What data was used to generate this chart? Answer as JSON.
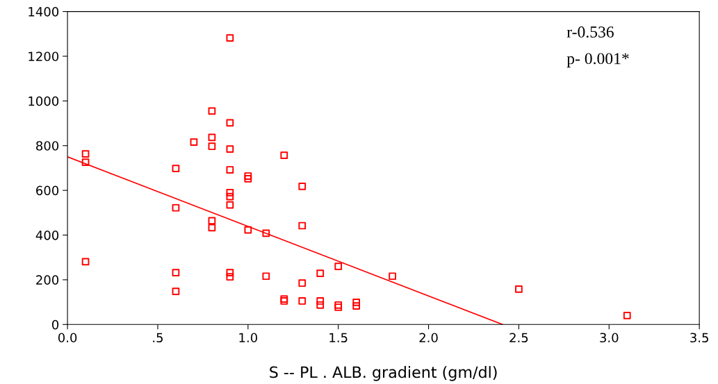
{
  "chart_data": {
    "type": "scatter",
    "xlabel": "S -- PL . ALB. gradient (gm/dl)",
    "xlim": [
      0,
      3.5
    ],
    "ylim": [
      0,
      1400
    ],
    "xticks": [
      {
        "value": 0,
        "label": "0.0"
      },
      {
        "value": 0.5,
        "label": ".5"
      },
      {
        "value": 1.0,
        "label": "1.0"
      },
      {
        "value": 1.5,
        "label": "1.5"
      },
      {
        "value": 2.0,
        "label": "2.0"
      },
      {
        "value": 2.5,
        "label": "2.5"
      },
      {
        "value": 3.0,
        "label": "3.0"
      },
      {
        "value": 3.5,
        "label": "3.5"
      }
    ],
    "yticks": [
      0,
      200,
      400,
      600,
      800,
      1000,
      1200,
      1400
    ],
    "grid": false,
    "legend": false,
    "marker": "square",
    "annotations": [
      "r-0.536",
      "p- 0.001*"
    ],
    "series": [
      {
        "color": "#ff0000",
        "x": [
          0.1,
          0.1,
          0.1,
          0.6,
          0.6,
          0.6,
          0.6,
          0.7,
          0.8,
          0.8,
          0.8,
          0.8,
          0.8,
          0.9,
          0.9,
          0.9,
          0.9,
          0.9,
          0.9,
          0.9,
          0.9,
          0.9,
          1.0,
          1.0,
          1.0,
          1.1,
          1.1,
          1.2,
          1.2,
          1.2,
          1.3,
          1.3,
          1.3,
          1.3,
          1.4,
          1.4,
          1.4,
          1.5,
          1.5,
          1.5,
          1.6,
          1.6,
          1.8,
          2.5,
          3.1
        ],
        "values": [
          763,
          726,
          281,
          698,
          522,
          232,
          148,
          816,
          955,
          837,
          797,
          464,
          433,
          1282,
          902,
          785,
          692,
          590,
          572,
          535,
          232,
          213,
          664,
          652,
          423,
          408,
          216,
          757,
          114,
          105,
          618,
          442,
          185,
          105,
          229,
          105,
          87,
          260,
          87,
          77,
          99,
          83,
          216,
          158,
          40
        ]
      },
      {
        "type": "line",
        "color": "#ff0000",
        "marker": "none",
        "x": [
          0,
          2.41
        ],
        "values": [
          750,
          0
        ]
      }
    ]
  }
}
